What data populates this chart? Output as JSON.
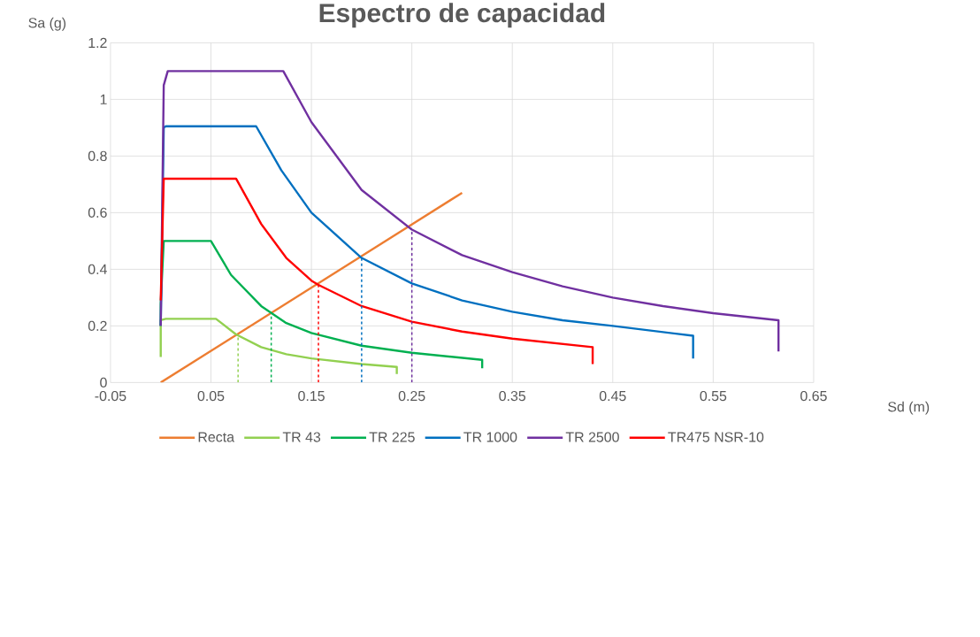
{
  "chart_data": {
    "type": "line",
    "title": "Espectro de capacidad",
    "xlabel": "Sd (m)",
    "ylabel": "Sa (g)",
    "xlim": [
      -0.05,
      0.65
    ],
    "xticks": [
      -0.05,
      0.05,
      0.15,
      0.25,
      0.35,
      0.45,
      0.55,
      0.65
    ],
    "ylim": [
      0,
      1.2
    ],
    "yticks": [
      0,
      0.2,
      0.4,
      0.6,
      0.8,
      1,
      1.2
    ],
    "grid": true,
    "legend": "bottom",
    "line_style": "solid",
    "marker": "none",
    "series": [
      {
        "name": "Recta",
        "color": "#ed7d31",
        "x": [
          0,
          0.3
        ],
        "values": [
          0,
          0.67
        ]
      },
      {
        "name": "TR 43",
        "color": "#92d050",
        "x": [
          0,
          0,
          0.005,
          0.055,
          0.075,
          0.1,
          0.125,
          0.15,
          0.2,
          0.235,
          0.235
        ],
        "values": [
          0.09,
          0.22,
          0.225,
          0.225,
          0.17,
          0.125,
          0.1,
          0.085,
          0.065,
          0.055,
          0.03
        ]
      },
      {
        "name": "TR 225",
        "color": "#00b050",
        "x": [
          0,
          0,
          0.003,
          0.05,
          0.07,
          0.1,
          0.125,
          0.15,
          0.2,
          0.25,
          0.32,
          0.32
        ],
        "values": [
          0.2,
          0.28,
          0.5,
          0.5,
          0.38,
          0.27,
          0.21,
          0.175,
          0.13,
          0.105,
          0.08,
          0.05
        ]
      },
      {
        "name": "TR 1000",
        "color": "#0070c0",
        "x": [
          0,
          0.003,
          0.005,
          0.095,
          0.12,
          0.15,
          0.2,
          0.25,
          0.3,
          0.35,
          0.4,
          0.45,
          0.53,
          0.53
        ],
        "values": [
          0.2,
          0.9,
          0.905,
          0.905,
          0.75,
          0.6,
          0.44,
          0.35,
          0.29,
          0.25,
          0.22,
          0.2,
          0.165,
          0.085
        ]
      },
      {
        "name": "TR 2500",
        "color": "#7030a0",
        "x": [
          0,
          0.003,
          0.007,
          0.122,
          0.15,
          0.2,
          0.25,
          0.3,
          0.35,
          0.4,
          0.45,
          0.5,
          0.55,
          0.615,
          0.615
        ],
        "values": [
          0.2,
          1.05,
          1.1,
          1.1,
          0.92,
          0.68,
          0.54,
          0.45,
          0.39,
          0.34,
          0.3,
          0.27,
          0.245,
          0.22,
          0.11
        ]
      },
      {
        "name": "TR475 NSR-10",
        "color": "#ff0000",
        "x": [
          0,
          0.003,
          0.075,
          0.1,
          0.125,
          0.15,
          0.157,
          0.2,
          0.25,
          0.3,
          0.35,
          0.43,
          0.43
        ],
        "values": [
          0.29,
          0.72,
          0.72,
          0.56,
          0.44,
          0.36,
          0.345,
          0.27,
          0.215,
          0.18,
          0.155,
          0.125,
          0.065
        ]
      },
      {
        "color": "#92d050",
        "line_style": "dashed",
        "x": [
          0.077,
          0.077
        ],
        "values": [
          0,
          0.17
        ]
      },
      {
        "color": "#00b050",
        "line_style": "dashed",
        "x": [
          0.11,
          0.11
        ],
        "values": [
          0,
          0.24
        ]
      },
      {
        "color": "#ff0000",
        "line_style": "dashed",
        "x": [
          0.157,
          0.157
        ],
        "values": [
          0,
          0.345
        ]
      },
      {
        "color": "#0070c0",
        "line_style": "dashed",
        "x": [
          0.2,
          0.2
        ],
        "values": [
          0,
          0.44
        ]
      },
      {
        "color": "#7030a0",
        "line_style": "dashed",
        "x": [
          0.25,
          0.25
        ],
        "values": [
          0,
          0.54
        ]
      }
    ]
  }
}
